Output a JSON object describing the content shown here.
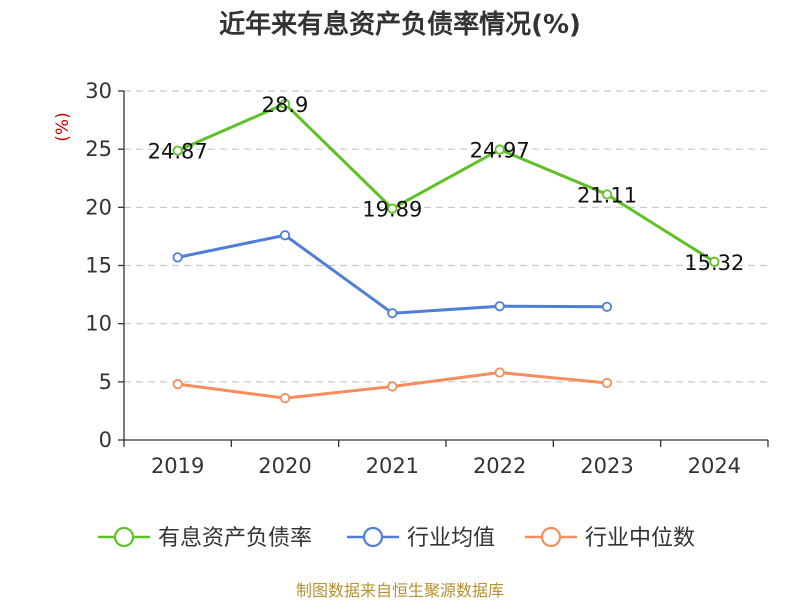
{
  "chart_data": {
    "type": "line",
    "title": "近年来有息资产负债率情况(%)",
    "ylabel": "(%)",
    "categories": [
      "2019",
      "2020",
      "2021",
      "2022",
      "2023",
      "2024"
    ],
    "ylim": [
      0,
      30
    ],
    "yticks": [
      0,
      5,
      10,
      15,
      20,
      25,
      30
    ],
    "grid": true,
    "legend_position": "bottom",
    "series": [
      {
        "name": "有息资产负债率",
        "color": "#5ec125",
        "values": [
          24.87,
          28.9,
          19.89,
          24.97,
          21.11,
          15.32
        ],
        "labels": [
          "24.87",
          "28.9",
          "19.89",
          "24.97",
          "21.11",
          "15.32"
        ]
      },
      {
        "name": "行业均值",
        "color": "#4e7fd6",
        "values": [
          15.7,
          17.6,
          10.9,
          11.5,
          11.45,
          null
        ]
      },
      {
        "name": "行业中位数",
        "color": "#f58d5c",
        "values": [
          4.8,
          3.6,
          4.6,
          5.8,
          4.9,
          null
        ]
      }
    ]
  },
  "source": "制图数据来自恒生聚源数据库"
}
